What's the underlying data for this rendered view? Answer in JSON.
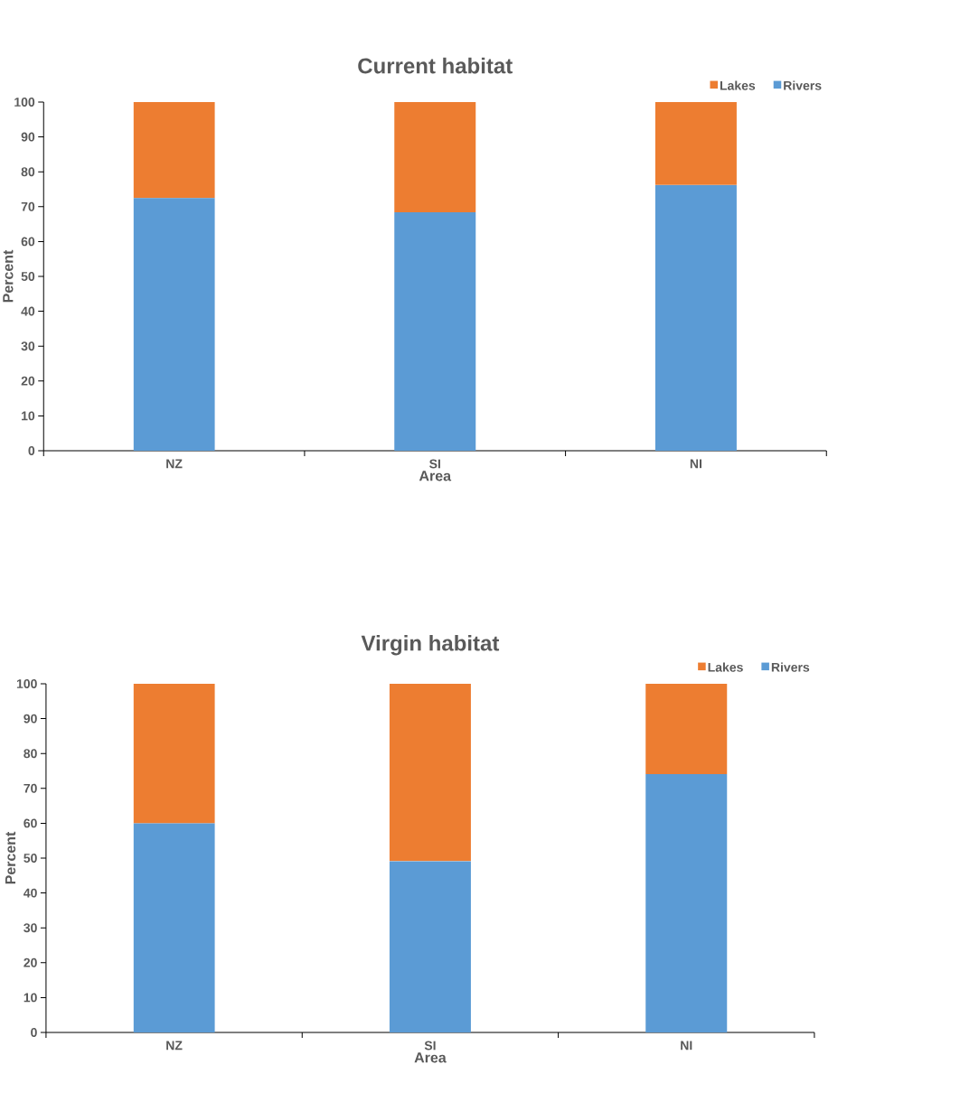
{
  "chart_data": [
    {
      "type": "bar",
      "stacked": true,
      "title": "Current habitat",
      "xlabel": "Area",
      "ylabel": "Percent",
      "categories": [
        "NZ",
        "SI",
        "NI"
      ],
      "series": [
        {
          "name": "Rivers",
          "color": "#5b9bd5",
          "values": [
            72.5,
            68.4,
            76.2
          ]
        },
        {
          "name": "Lakes",
          "color": "#ed7d31",
          "values": [
            27.5,
            31.6,
            23.8
          ]
        }
      ],
      "ylim": [
        0,
        100
      ],
      "yticks": [
        0,
        10,
        20,
        30,
        40,
        50,
        60,
        70,
        80,
        90,
        100
      ],
      "legend": "top right"
    },
    {
      "type": "bar",
      "stacked": true,
      "title": "Virgin habitat",
      "xlabel": "Area",
      "ylabel": "Percent",
      "categories": [
        "NZ",
        "SI",
        "NI"
      ],
      "series": [
        {
          "name": "Rivers",
          "color": "#5b9bd5",
          "values": [
            60,
            49.1,
            74.1
          ]
        },
        {
          "name": "Lakes",
          "color": "#ed7d31",
          "values": [
            40,
            50.9,
            25.9
          ]
        }
      ],
      "ylim": [
        0,
        100
      ],
      "yticks": [
        0,
        10,
        20,
        30,
        40,
        50,
        60,
        70,
        80,
        90,
        100
      ],
      "legend": "top right"
    }
  ]
}
